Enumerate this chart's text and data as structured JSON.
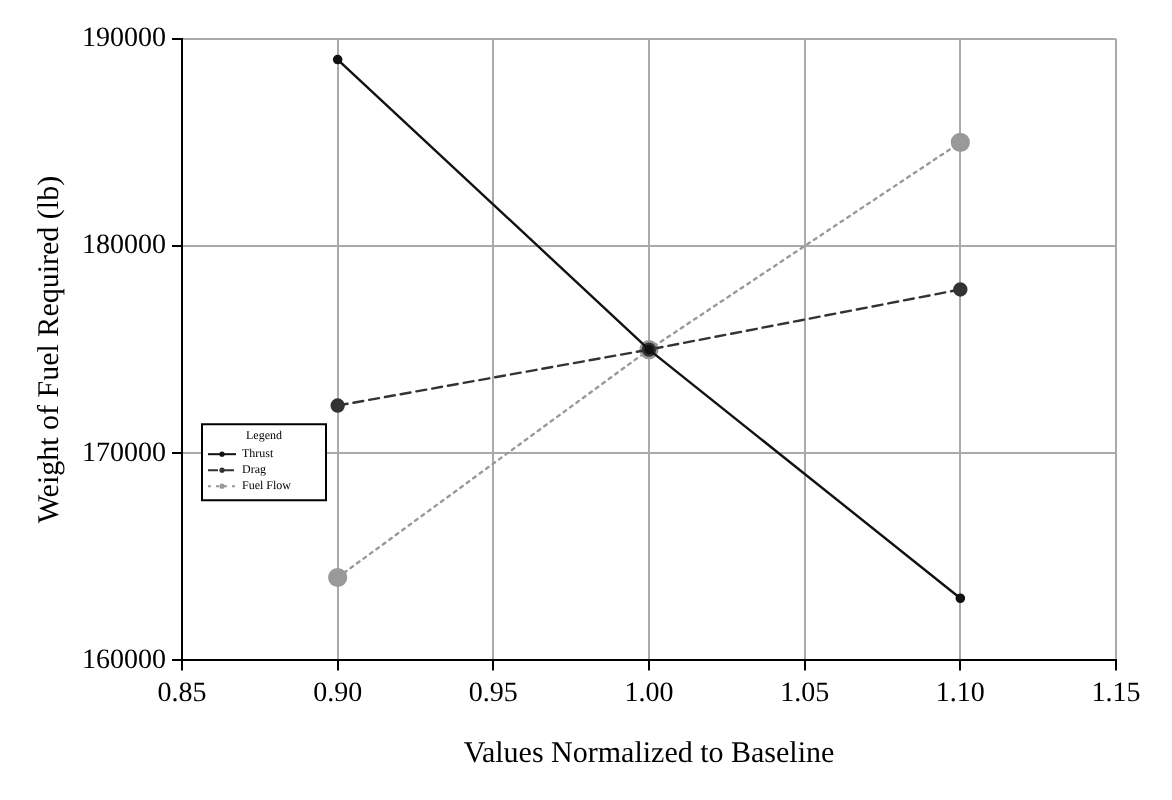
{
  "chart_data": {
    "type": "line",
    "xlabel": "Values Normalized to Baseline",
    "ylabel": "Weight of Fuel Required (lb)",
    "legend_title": "Legend",
    "x": [
      0.9,
      1.0,
      1.1
    ],
    "series": [
      {
        "name": "Thrust",
        "color": "#111111",
        "values": [
          189000,
          175000,
          163000
        ],
        "line_style": "solid"
      },
      {
        "name": "Drag",
        "color": "#333333",
        "values": [
          172300,
          175000,
          177900
        ],
        "line_style": "dashed"
      },
      {
        "name": "Fuel Flow",
        "color": "#999999",
        "values": [
          164000,
          175000,
          185000
        ],
        "line_style": "dotted"
      }
    ],
    "xlim": [
      0.85,
      1.15
    ],
    "xticks": [
      {
        "value": 0.85,
        "label": "0.85"
      },
      {
        "value": 0.9,
        "label": "0.90"
      },
      {
        "value": 0.95,
        "label": "0.95"
      },
      {
        "value": 1.0,
        "label": "1.00"
      },
      {
        "value": 1.05,
        "label": "1.05"
      },
      {
        "value": 1.1,
        "label": "1.10"
      },
      {
        "value": 1.15,
        "label": "1.15"
      }
    ],
    "ylim": [
      160000,
      190000
    ],
    "yticks": [
      160000,
      170000,
      180000,
      190000
    ],
    "grid": true,
    "legend": "left",
    "marker": "circle"
  }
}
